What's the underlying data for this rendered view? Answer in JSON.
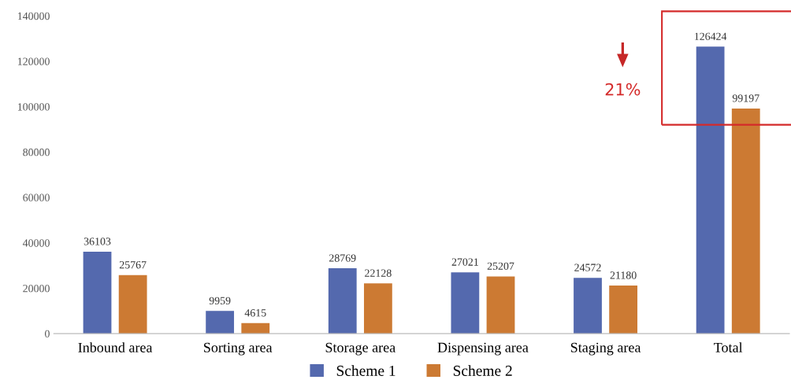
{
  "chart_data": {
    "type": "bar",
    "categories": [
      "Inbound area",
      "Sorting area",
      "Storage area",
      "Dispensing area",
      "Staging area",
      "Total"
    ],
    "series": [
      {
        "name": "Scheme 1",
        "color": "#5469ae",
        "values": [
          36103,
          9959,
          28769,
          27021,
          24572,
          126424
        ]
      },
      {
        "name": "Scheme 2",
        "color": "#cc7a33",
        "values": [
          25767,
          4615,
          22128,
          25207,
          21180,
          99197
        ]
      }
    ],
    "ylim": [
      0,
      140000
    ],
    "yticks": [
      0,
      20000,
      40000,
      60000,
      80000,
      100000,
      120000,
      140000
    ],
    "data_labels": true,
    "grid": false,
    "legend": "bottom",
    "annotations": [
      "21%"
    ]
  }
}
